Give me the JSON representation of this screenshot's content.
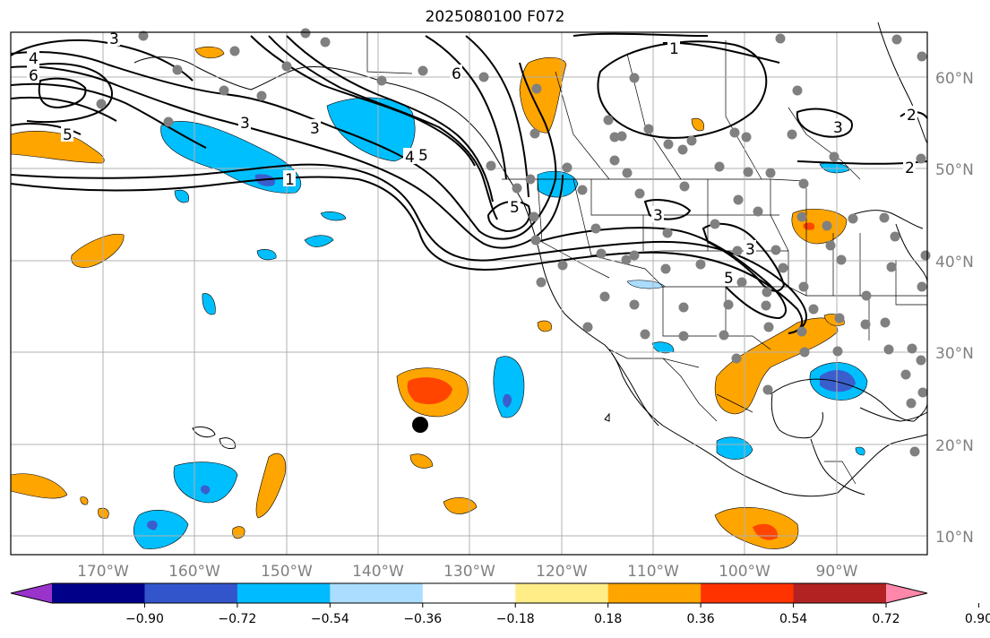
{
  "title": "2025080100 F072",
  "lat_labels": [
    "60°N",
    "50°N",
    "40°N",
    "30°N",
    "20°N",
    "10°N"
  ],
  "lon_labels": [
    "170°W",
    "160°W",
    "150°W",
    "140°W",
    "130°W",
    "120°W",
    "110°W",
    "100°W",
    "90°W"
  ],
  "colorbar": {
    "ticks": [
      "−0.90",
      "−0.72",
      "−0.54",
      "−0.36",
      "−0.18",
      "0.18",
      "0.36",
      "0.54",
      "0.72",
      "0.90"
    ],
    "colors": [
      "#9933cc",
      "#000088",
      "#3355cc",
      "#00bbff",
      "#aaddff",
      "#ffffff",
      "#ffee88",
      "#ffa500",
      "#ff3300",
      "#b22222",
      "#ff88aa"
    ]
  },
  "contour_labels": [
    "3",
    "4",
    "6",
    "5",
    "3",
    "1",
    "3",
    "5",
    "4",
    "6",
    "1",
    "5",
    "3",
    "3",
    "3",
    "2",
    "2",
    "5"
  ],
  "colors": {
    "positive": "#ffa500",
    "positive_strong": "#ff4500",
    "negative": "#00bfff",
    "negative_strong": "#3a5fcd",
    "station": "#808080",
    "grid": "#b0b0b0"
  }
}
